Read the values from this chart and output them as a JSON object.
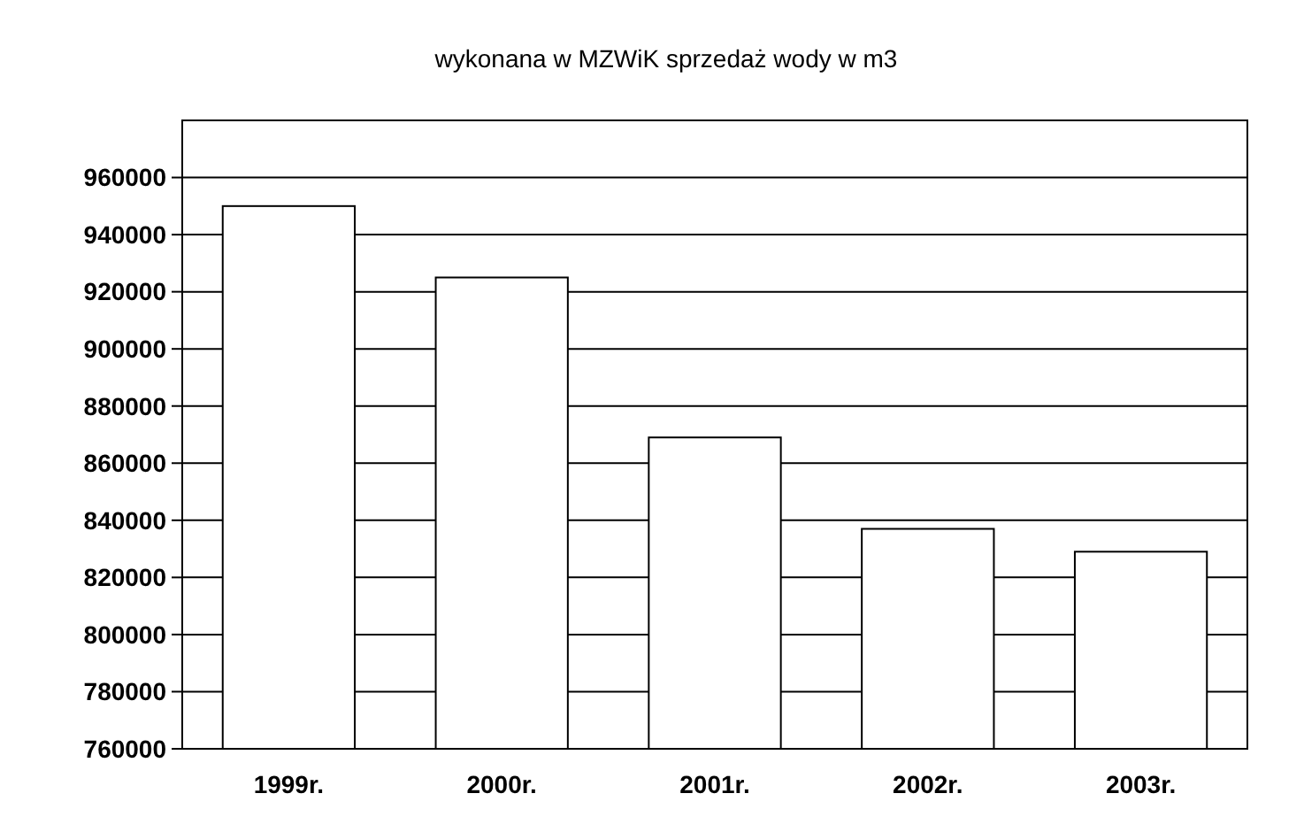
{
  "chart_data": {
    "type": "bar",
    "title": "wykonana w MZWiK  sprzedaż wody w m3",
    "categories": [
      "1999r.",
      "2000r.",
      "2001r.",
      "2002r.",
      "2003r."
    ],
    "values": [
      950000,
      925000,
      869000,
      837000,
      829000
    ],
    "color": "#ffffff",
    "ylim": [
      760000,
      980000
    ],
    "yticks": [
      760000,
      780000,
      800000,
      820000,
      840000,
      860000,
      880000,
      900000,
      920000,
      940000,
      960000
    ],
    "grid": "y"
  }
}
